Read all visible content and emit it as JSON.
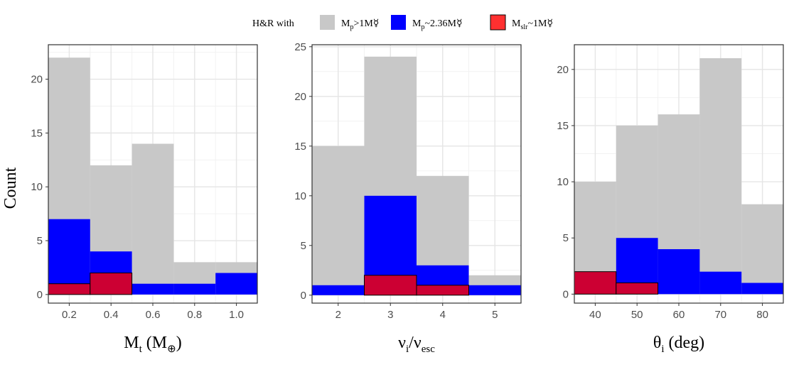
{
  "legend": {
    "title": "H&R with",
    "items": [
      {
        "main": "M",
        "sub": "p",
        "rest": ">1M☿",
        "color": "#c8c8c8",
        "border": "none"
      },
      {
        "main": "M",
        "sub": "p",
        "rest": "~2.36M☿",
        "color": "#0000ff",
        "border": "none"
      },
      {
        "main": "M",
        "sub": "slr",
        "rest": "~1M☿",
        "color": "#ff3030",
        "border": "#000000"
      }
    ]
  },
  "y_axis_title": "Count",
  "colors": {
    "all": "#c8c8c8",
    "mp236": "#0000ff",
    "mslr": "#cc0033",
    "mslr_border": "#000000",
    "grid_major": "#e5e5e5",
    "grid_minor": "#f2f2f2",
    "panel_border": "#333333"
  },
  "chart_data": [
    {
      "type": "bar",
      "xlabel": {
        "main": "M",
        "sub": "t",
        "rest": " (M",
        "sub2": "⊕",
        "end": ")"
      },
      "ylabel": "Count",
      "xlim": [
        0.1,
        1.1
      ],
      "ylim": [
        -0.8,
        23.2
      ],
      "xticks": [
        0.2,
        0.4,
        0.6,
        0.8,
        1.0
      ],
      "xtick_labels": [
        "0.2",
        "0.4",
        "0.6",
        "0.8",
        "1.0"
      ],
      "yticks": [
        0,
        5,
        10,
        15,
        20
      ],
      "ytick_labels": [
        "0",
        "5",
        "10",
        "15",
        "20"
      ],
      "bin_edges": [
        0.1,
        0.3,
        0.5,
        0.7,
        0.9,
        1.1
      ],
      "series": [
        {
          "name": "Mp>1M☿",
          "values": [
            22,
            12,
            14,
            3,
            3
          ]
        },
        {
          "name": "Mp~2.36M☿",
          "values": [
            7,
            4,
            1,
            1,
            2
          ]
        },
        {
          "name": "Mslr~1M☿",
          "values": [
            1,
            2,
            0,
            0,
            0
          ]
        }
      ]
    },
    {
      "type": "bar",
      "xlabel": {
        "main": "ν",
        "sub": "i",
        "rest": "/ν",
        "sub2": "esc",
        "end": ""
      },
      "ylabel": "",
      "xlim": [
        1.5,
        5.5
      ],
      "ylim": [
        -0.8,
        25.2
      ],
      "xticks": [
        2,
        3,
        4,
        5
      ],
      "xtick_labels": [
        "2",
        "3",
        "4",
        "5"
      ],
      "yticks": [
        0,
        5,
        10,
        15,
        20,
        25
      ],
      "ytick_labels": [
        "0",
        "5",
        "10",
        "15",
        "20",
        "25"
      ],
      "bin_edges": [
        1.5,
        2.5,
        3.5,
        4.5,
        5.5
      ],
      "series": [
        {
          "name": "Mp>1M☿",
          "values": [
            15,
            24,
            12,
            2
          ]
        },
        {
          "name": "Mp~2.36M☿",
          "values": [
            1,
            10,
            3,
            1
          ]
        },
        {
          "name": "Mslr~1M☿",
          "values": [
            0,
            2,
            1,
            0
          ]
        }
      ]
    },
    {
      "type": "bar",
      "xlabel": {
        "main": "θ",
        "sub": "i",
        "rest": " (deg)",
        "sub2": "",
        "end": ""
      },
      "ylabel": "",
      "xlim": [
        35,
        85
      ],
      "ylim": [
        -0.8,
        22.2
      ],
      "xticks": [
        40,
        50,
        60,
        70,
        80
      ],
      "xtick_labels": [
        "40",
        "50",
        "60",
        "70",
        "80"
      ],
      "yticks": [
        0,
        5,
        10,
        15,
        20
      ],
      "ytick_labels": [
        "0",
        "5",
        "10",
        "15",
        "20"
      ],
      "bin_edges": [
        35,
        45,
        55,
        65,
        75,
        85
      ],
      "series": [
        {
          "name": "Mp>1M☿",
          "values": [
            10,
            15,
            16,
            21,
            8
          ]
        },
        {
          "name": "Mp~2.36M☿",
          "values": [
            2,
            5,
            4,
            2,
            1
          ]
        },
        {
          "name": "Mslr~1M☿",
          "values": [
            2,
            1,
            0,
            0,
            0
          ]
        }
      ]
    }
  ]
}
